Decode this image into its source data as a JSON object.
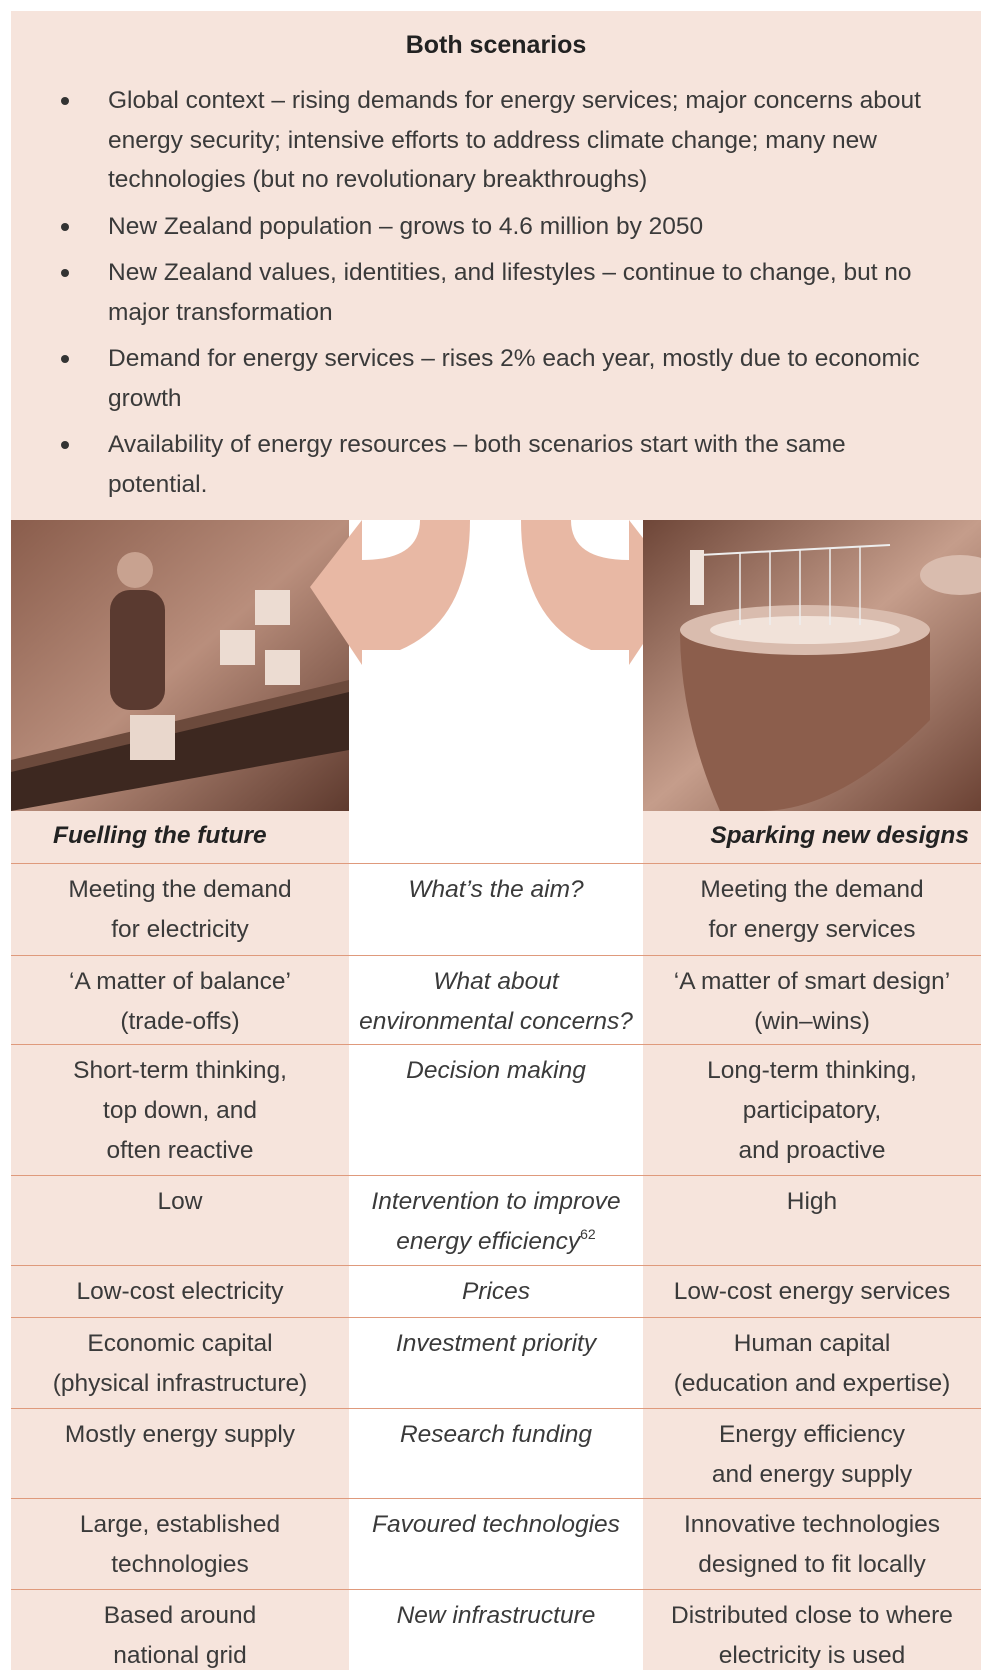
{
  "header": {
    "title": "Both scenarios",
    "bullets": [
      [
        "Global context – rising demands for energy services; major concerns about",
        "energy security; intensive efforts to address climate change; many new",
        "technologies (but no revolutionary breakthroughs)"
      ],
      [
        "New Zealand population – grows to 4.6 million by 2050"
      ],
      [
        "New Zealand values, identities, and lifestyles – continue to change, but no",
        "major transformation"
      ],
      [
        "Demand for energy services – rises 2% each year, mostly due to economic",
        "growth"
      ],
      [
        "Availability of energy resources – both scenarios start with the same",
        "potential."
      ]
    ]
  },
  "table": {
    "headings": {
      "left": "Fuelling the future",
      "right": "Sparking new designs"
    },
    "rows": [
      {
        "left": [
          "Meeting the demand",
          "for electricity"
        ],
        "question": [
          "What’s the aim?"
        ],
        "right": [
          "Meeting the demand",
          "for energy services"
        ]
      },
      {
        "left": [
          "‘A matter of balance’",
          "(trade-offs)"
        ],
        "question": [
          "What about",
          "environmental concerns?"
        ],
        "right": [
          "‘A matter of smart design’",
          "(win–wins)"
        ]
      },
      {
        "left": [
          "Short-term thinking,",
          "top down, and",
          "often reactive"
        ],
        "question": [
          "Decision making"
        ],
        "right": [
          "Long-term thinking,",
          "participatory,",
          "and proactive"
        ]
      },
      {
        "left": [
          "Low"
        ],
        "question": [
          "Intervention to improve",
          "energy efficiency"
        ],
        "note": "62",
        "right": [
          "High"
        ]
      },
      {
        "left": [
          "Low-cost electricity"
        ],
        "question": [
          "Prices"
        ],
        "right": [
          "Low-cost energy services"
        ]
      },
      {
        "left": [
          "Economic capital",
          "(physical infrastructure)"
        ],
        "question": [
          "Investment priority"
        ],
        "right": [
          "Human capital",
          "(education and expertise)"
        ]
      },
      {
        "left": [
          "Mostly energy supply"
        ],
        "question": [
          "Research funding"
        ],
        "right": [
          "Energy efficiency",
          "and energy supply"
        ]
      },
      {
        "left": [
          "Large, established",
          "technologies"
        ],
        "question": [
          "Favoured technologies"
        ],
        "right": [
          "Innovative technologies",
          "designed to fit locally"
        ]
      },
      {
        "left": [
          "Based around",
          "national grid"
        ],
        "question": [
          "New infrastructure"
        ],
        "right": [
          "Distributed close to where",
          "electricity is used"
        ]
      }
    ]
  }
}
